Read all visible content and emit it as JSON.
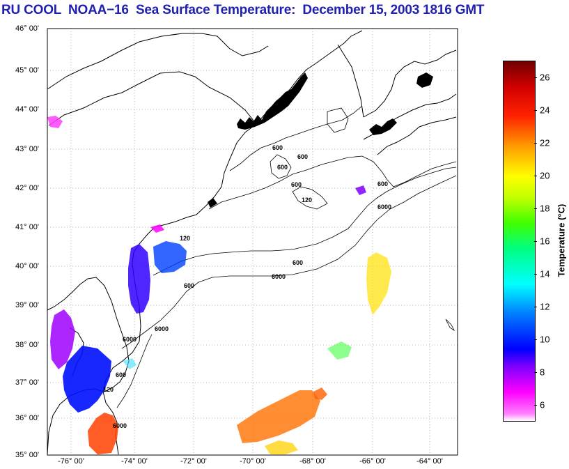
{
  "title": "RU COOL  NOAA−16  Sea Surface Temperature:  December 15, 2003 1816 GMT",
  "lat_labels": [
    "46° 00'",
    "45° 00'",
    "44° 00'",
    "43° 00'",
    "42° 00'",
    "41° 00'",
    "40° 00'",
    "39° 00'",
    "38° 00'",
    "37° 00'",
    "36° 00'",
    "35° 00'"
  ],
  "lon_labels": [
    "-76° 00'",
    "-74° 00'",
    "-72° 00'",
    "-70° 00'",
    "-68° 00'",
    "-66° 00'",
    "-64° 00'"
  ],
  "contour_labels": [
    "600",
    "600",
    "600",
    "600",
    "120",
    "600",
    "6000",
    "120",
    "600",
    "6000",
    "600",
    "6000",
    "6000",
    "600",
    "120",
    "6000"
  ],
  "colorbar": {
    "label": "Temperature (°C)",
    "min": 5,
    "max": 27,
    "ticks": [
      "6",
      "8",
      "10",
      "12",
      "14",
      "16",
      "18",
      "20",
      "22",
      "24",
      "26"
    ],
    "colors": [
      "#ffffff",
      "#ff00ff",
      "#8000ff",
      "#0000ff",
      "#0080ff",
      "#00ffff",
      "#00ff80",
      "#00ff00",
      "#80ff00",
      "#ffff00",
      "#ff8000",
      "#ff0000",
      "#800000"
    ]
  }
}
